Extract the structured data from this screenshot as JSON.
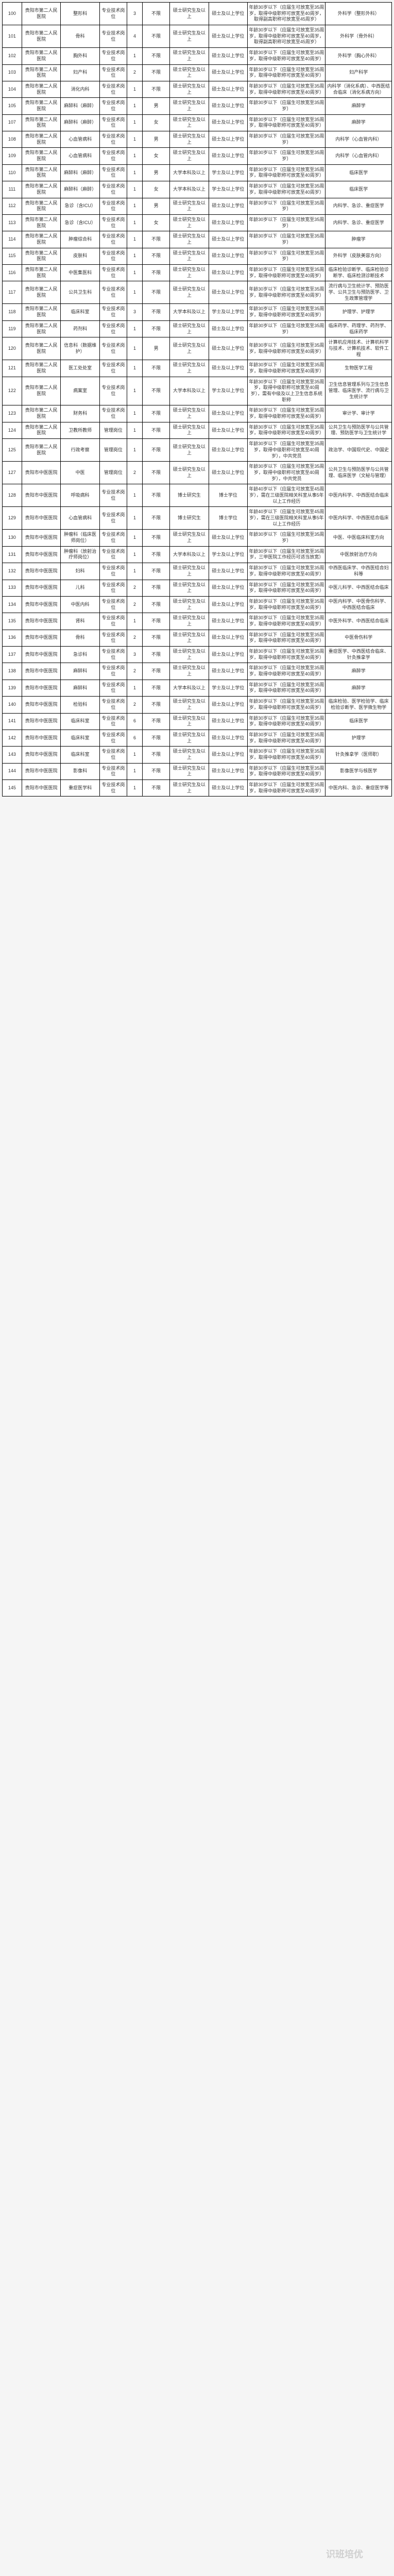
{
  "watermark": "识班培优",
  "columns": [
    {
      "key": "idx",
      "width": "5%"
    },
    {
      "key": "org",
      "width": "10%"
    },
    {
      "key": "dept",
      "width": "10%"
    },
    {
      "key": "jobtype",
      "width": "7%"
    },
    {
      "key": "count",
      "width": "4%"
    },
    {
      "key": "gender",
      "width": "7%"
    },
    {
      "key": "degree1",
      "width": "10%"
    },
    {
      "key": "degree2",
      "width": "10%"
    },
    {
      "key": "age",
      "width": "20%"
    },
    {
      "key": "major",
      "width": "17%"
    }
  ],
  "rows": [
    {
      "idx": "100",
      "org": "贵阳市第二人民医院",
      "dept": "整形科",
      "jobtype": "专业技术岗位",
      "count": "3",
      "gender": "不限",
      "degree1": "硕士研究生及以上",
      "degree2": "硕士及以上学位",
      "age": "年龄30岁以下（应届生可放宽至35周岁，取得中级职称可放宽至40周岁，取得副高职称可放宽至45周岁）",
      "major": "外科学（整形外科）"
    },
    {
      "idx": "101",
      "org": "贵阳市第二人民医院",
      "dept": "骨科",
      "jobtype": "专业技术岗位",
      "count": "4",
      "gender": "不限",
      "degree1": "硕士研究生及以上",
      "degree2": "硕士及以上学位",
      "age": "年龄30岁以下（应届生可放宽至35周岁，取得中级职称可放宽至40周岁，取得副高职称可放宽至45周岁）",
      "major": "外科学（骨外科）"
    },
    {
      "idx": "102",
      "org": "贵阳市第二人民医院",
      "dept": "胸外科",
      "jobtype": "专业技术岗位",
      "count": "1",
      "gender": "不限",
      "degree1": "硕士研究生及以上",
      "degree2": "硕士及以上学位",
      "age": "年龄30岁以下（应届生可放宽至35周岁，取得中级职称可放宽至40周岁）",
      "major": "外科学（胸心外科）"
    },
    {
      "idx": "103",
      "org": "贵阳市第二人民医院",
      "dept": "妇产科",
      "jobtype": "专业技术岗位",
      "count": "2",
      "gender": "不限",
      "degree1": "硕士研究生及以上",
      "degree2": "硕士及以上学位",
      "age": "年龄30岁以下（应届生可放宽至35周岁，取得中级职称可放宽至40周岁）",
      "major": "妇产科学"
    },
    {
      "idx": "104",
      "org": "贵阳市第二人民医院",
      "dept": "消化内科",
      "jobtype": "专业技术岗位",
      "count": "1",
      "gender": "不限",
      "degree1": "硕士研究生及以上",
      "degree2": "硕士及以上学位",
      "age": "年龄30岁以下（应届生可放宽至35周岁，取得中级职称可放宽至40周岁）",
      "major": "内科学（消化系病）、中西医结合临床（消化系病方向）"
    },
    {
      "idx": "105",
      "org": "贵阳市第二人民医院",
      "dept": "麻醉科（麻醉）",
      "jobtype": "专业技术岗位",
      "count": "1",
      "gender": "男",
      "degree1": "硕士研究生及以上",
      "degree2": "硕士及以上学位",
      "age": "年龄30岁以下（应届生可放宽至35周岁）",
      "major": "麻醉学"
    },
    {
      "idx": "107",
      "org": "贵阳市第二人民医院",
      "dept": "麻醉科（麻醉）",
      "jobtype": "专业技术岗位",
      "count": "1",
      "gender": "女",
      "degree1": "硕士研究生及以上",
      "degree2": "硕士及以上学位",
      "age": "年龄30岁以下（应届生可放宽至35周岁，取得中级职称可放宽至40周岁）",
      "major": "麻醉学"
    },
    {
      "idx": "108",
      "org": "贵阳市第二人民医院",
      "dept": "心血管病科",
      "jobtype": "专业技术岗位",
      "count": "1",
      "gender": "男",
      "degree1": "硕士研究生及以上",
      "degree2": "硕士及以上学位",
      "age": "年龄30岁以下（应届生可放宽至35周岁）",
      "major": "内科学（心血管内科）"
    },
    {
      "idx": "109",
      "org": "贵阳市第二人民医院",
      "dept": "心血管病科",
      "jobtype": "专业技术岗位",
      "count": "1",
      "gender": "女",
      "degree1": "硕士研究生及以上",
      "degree2": "硕士及以上学位",
      "age": "年龄30岁以下（应届生可放宽至35周岁）",
      "major": "内科学（心血管内科）"
    },
    {
      "idx": "110",
      "org": "贵阳市第二人民医院",
      "dept": "麻醉科（麻醉）",
      "jobtype": "专业技术岗位",
      "count": "1",
      "gender": "男",
      "degree1": "大学本科及以上",
      "degree2": "学士及以上学位",
      "age": "年龄30岁以下（应届生可放宽至35周岁，取得中级职称可放宽至40周岁）",
      "major": "临床医学"
    },
    {
      "idx": "111",
      "org": "贵阳市第二人民医院",
      "dept": "麻醉科（麻醉）",
      "jobtype": "专业技术岗位",
      "count": "1",
      "gender": "女",
      "degree1": "大学本科及以上",
      "degree2": "学士及以上学位",
      "age": "年龄30岁以下（应届生可放宽至35周岁，取得中级职称可放宽至40周岁）",
      "major": "临床医学"
    },
    {
      "idx": "112",
      "org": "贵阳市第二人民医院",
      "dept": "急诊（含ICU）",
      "jobtype": "专业技术岗位",
      "count": "1",
      "gender": "男",
      "degree1": "硕士研究生及以上",
      "degree2": "硕士及以上学位",
      "age": "年龄30岁以下（应届生可放宽至35周岁）",
      "major": "内科学、急诊、重症医学"
    },
    {
      "idx": "113",
      "org": "贵阳市第二人民医院",
      "dept": "急诊（含ICU）",
      "jobtype": "专业技术岗位",
      "count": "1",
      "gender": "女",
      "degree1": "硕士研究生及以上",
      "degree2": "硕士及以上学位",
      "age": "年龄30岁以下（应届生可放宽至35周岁）",
      "major": "内科学、急诊、重症医学"
    },
    {
      "idx": "114",
      "org": "贵阳市第二人民医院",
      "dept": "肿瘤综合科",
      "jobtype": "专业技术岗位",
      "count": "1",
      "gender": "不限",
      "degree1": "硕士研究生及以上",
      "degree2": "硕士及以上学位",
      "age": "年龄30岁以下（应届生可放宽至35周岁）",
      "major": "肿瘤学"
    },
    {
      "idx": "115",
      "org": "贵阳市第二人民医院",
      "dept": "皮肤科",
      "jobtype": "专业技术岗位",
      "count": "1",
      "gender": "不限",
      "degree1": "硕士研究生及以上",
      "degree2": "硕士及以上学位",
      "age": "年龄30岁以下（应届生可放宽至35周岁）",
      "major": "外科学（皮肤美容方向）"
    },
    {
      "idx": "116",
      "org": "贵阳市第二人民医院",
      "dept": "中医集医科",
      "jobtype": "专业技术岗位",
      "count": "1",
      "gender": "不限",
      "degree1": "硕士研究生及以上",
      "degree2": "硕士及以上学位",
      "age": "年龄30岁以下（应届生可放宽至35周岁，取得中级职称可放宽至40周岁）",
      "major": "临床检验诊断学、临床检验诊断学、临床检测诊断技术"
    },
    {
      "idx": "117",
      "org": "贵阳市第二人民医院",
      "dept": "公共卫生科",
      "jobtype": "专业技术岗位",
      "count": "1",
      "gender": "不限",
      "degree1": "硕士研究生及以上",
      "degree2": "硕士及以上学位",
      "age": "年龄30岁以下（应届生可放宽至35周岁，取得中级职称可放宽至40周岁）",
      "major": "流行病与卫生统计学、预防医学、公共卫生与预防医学、卫生政策管理学"
    },
    {
      "idx": "118",
      "org": "贵阳市第二人民医院",
      "dept": "临床科室",
      "jobtype": "专业技术岗位",
      "count": "3",
      "gender": "不限",
      "degree1": "大学本科及以上",
      "degree2": "学士及以上学位",
      "age": "年龄30岁以下（应届生可放宽至35周岁，取得中级职称可放宽至40周岁）",
      "major": "护理学、护理学"
    },
    {
      "idx": "119",
      "org": "贵阳市第二人民医院",
      "dept": "药剂科",
      "jobtype": "专业技术岗位",
      "count": "1",
      "gender": "不限",
      "degree1": "硕士研究生及以上",
      "degree2": "硕士及以上学位",
      "age": "年龄30岁以下（应届生可放宽至35周岁）",
      "major": "临床药学、药理学、药剂学、临床药学"
    },
    {
      "idx": "120",
      "org": "贵阳市第二人民医院",
      "dept": "信息科（数据维护）",
      "jobtype": "专业技术岗位",
      "count": "1",
      "gender": "男",
      "degree1": "硕士研究生及以上",
      "degree2": "硕士及以上学位",
      "age": "年龄30岁以下（应届生可放宽至35周岁，取得中级职称可放宽至40周岁）",
      "major": "计算机应用技术、计算机科学与技术、计算机技术、软件工程"
    },
    {
      "idx": "121",
      "org": "贵阳市第二人民医院",
      "dept": "医工处处室",
      "jobtype": "专业技术岗位",
      "count": "1",
      "gender": "不限",
      "degree1": "硕士研究生及以上",
      "degree2": "硕士及以上学位",
      "age": "年龄30岁以下（应届生可放宽至35周岁，取得中级职称可放宽至40周岁）",
      "major": "生物医学工程"
    },
    {
      "idx": "122",
      "org": "贵阳市第二人民医院",
      "dept": "病案室",
      "jobtype": "专业技术岗位",
      "count": "1",
      "gender": "不限",
      "degree1": "大学本科及以上",
      "degree2": "学士及以上学位",
      "age": "年龄30岁以下（应届生可放宽至35周岁，取得中级职称可放宽至40周岁），需有中级及以上卫生信息系统职称",
      "major": "卫生信息管理系列与卫生信息管理、临床医学、流行病与卫生统计学"
    },
    {
      "idx": "123",
      "org": "贵阳市第二人民医院",
      "dept": "财务科",
      "jobtype": "专业技术岗位",
      "count": "1",
      "gender": "不限",
      "degree1": "硕士研究生及以上",
      "degree2": "硕士及以上学位",
      "age": "年龄30岁以下（应届生可放宽至35周岁，取得中级职称可放宽至40周岁）",
      "major": "审计学、审计学"
    },
    {
      "idx": "124",
      "org": "贵阳市第二人民医院",
      "dept": "卫教所教师",
      "jobtype": "管理岗位",
      "count": "1",
      "gender": "不限",
      "degree1": "硕士研究生及以上",
      "degree2": "硕士及以上学位",
      "age": "年龄30岁以下（应届生可放宽至35周岁，取得中级职称可放宽至40周岁）",
      "major": "公共卫生与预防医学与公共管理、预防医学与卫生统计学"
    },
    {
      "idx": "125",
      "org": "贵阳市第二人民医院",
      "dept": "行政考察",
      "jobtype": "管理岗位",
      "count": "1",
      "gender": "不限",
      "degree1": "硕士研究生及以上",
      "degree2": "硕士及以上学位",
      "age": "年龄30岁以下（应届生可放宽至35周岁，取得中级职称可放宽至40周岁），中共党员",
      "major": "政治学、中国现代史、中国史"
    },
    {
      "idx": "127",
      "org": "贵阳市中医医院",
      "dept": "中医",
      "jobtype": "管理岗位",
      "count": "2",
      "gender": "不限",
      "degree1": "硕士研究生及以上",
      "degree2": "硕士及以上学位",
      "age": "年龄30岁以下（应届生可放宽至35周岁，取得中级职称可放宽至40周岁），中共党员",
      "major": "公共卫生与预防医学与公共管理、临床医学（文秘与管理）"
    },
    {
      "idx": "128",
      "org": "贵阳市中医医院",
      "dept": "呼吸病科",
      "jobtype": "专业技术岗位",
      "count": "1",
      "gender": "不限",
      "degree1": "博士研究生",
      "degree2": "博士学位",
      "age": "年龄40岁以下（应届生可放宽至45周岁），需在三级医院相关科室从事5年以上工作经历",
      "major": "中医内科学、中西医结合临床"
    },
    {
      "idx": "129",
      "org": "贵阳市中医医院",
      "dept": "心血管病科",
      "jobtype": "专业技术岗位",
      "count": "1",
      "gender": "不限",
      "degree1": "博士研究生",
      "degree2": "博士学位",
      "age": "年龄40岁以下（应届生可放宽至45周岁），需在三级医院相关科室从事5年以上工作经历",
      "major": "中医内科学、中西医结合临床"
    },
    {
      "idx": "130",
      "org": "贵阳市中医医院",
      "dept": "肿瘤科（临床医师岗位）",
      "jobtype": "专业技术岗位",
      "count": "1",
      "gender": "不限",
      "degree1": "硕士研究生及以上",
      "degree2": "硕士及以上学位",
      "age": "年龄30岁以下（应届生可放宽至35周岁）",
      "major": "中医、中医临床科室方向"
    },
    {
      "idx": "131",
      "org": "贵阳市中医医院",
      "dept": "肿瘤科（放射治疗师岗位）",
      "jobtype": "专业技术岗位",
      "count": "1",
      "gender": "不限",
      "degree1": "大学本科及以上",
      "degree2": "学士及以上学位",
      "age": "年龄30岁以下（应届生可放宽至35周岁，三甲医院工作经历可适当放宽）",
      "major": "中医放射治疗方向"
    },
    {
      "idx": "132",
      "org": "贵阳市中医医院",
      "dept": "妇科",
      "jobtype": "专业技术岗位",
      "count": "1",
      "gender": "不限",
      "degree1": "硕士研究生及以上",
      "degree2": "硕士及以上学位",
      "age": "年龄30岁以下（应届生可放宽至35周岁，取得中级职称可放宽至40周岁）",
      "major": "中西医临床学、中西医结合妇科等"
    },
    {
      "idx": "133",
      "org": "贵阳市中医医院",
      "dept": "儿科",
      "jobtype": "专业技术岗位",
      "count": "2",
      "gender": "不限",
      "degree1": "硕士研究生及以上",
      "degree2": "硕士及以上学位",
      "age": "年龄30岁以下（应届生可放宽至35周岁，取得中级职称可放宽至40周岁）",
      "major": "中医儿科学、中西医结合临床"
    },
    {
      "idx": "134",
      "org": "贵阳市中医医院",
      "dept": "中医内科",
      "jobtype": "专业技术岗位",
      "count": "2",
      "gender": "不限",
      "degree1": "硕士研究生及以上",
      "degree2": "硕士及以上学位",
      "age": "年龄30岁以下（应届生可放宽至35周岁，取得中级职称可放宽至40周岁）",
      "major": "中医内科学、中医骨伤科学、中西医结合临床"
    },
    {
      "idx": "135",
      "org": "贵阳市中医医院",
      "dept": "肾科",
      "jobtype": "专业技术岗位",
      "count": "1",
      "gender": "不限",
      "degree1": "硕士研究生及以上",
      "degree2": "硕士及以上学位",
      "age": "年龄30岁以下（应届生可放宽至35周岁，取得中级职称可放宽至40周岁）",
      "major": "中医外科学、中西医结合临床"
    },
    {
      "idx": "136",
      "org": "贵阳市中医医院",
      "dept": "骨科",
      "jobtype": "专业技术岗位",
      "count": "2",
      "gender": "不限",
      "degree1": "硕士研究生及以上",
      "degree2": "硕士及以上学位",
      "age": "年龄30岁以下（应届生可放宽至35周岁，取得中级职称可放宽至40周岁）",
      "major": "中医骨伤科学"
    },
    {
      "idx": "137",
      "org": "贵阳市中医医院",
      "dept": "急诊科",
      "jobtype": "专业技术岗位",
      "count": "3",
      "gender": "不限",
      "degree1": "硕士研究生及以上",
      "degree2": "硕士及以上学位",
      "age": "年龄30岁以下（应届生可放宽至35周岁，取得中级职称可放宽至40周岁）",
      "major": "重症医学、中西医结合临床、针灸推拿学"
    },
    {
      "idx": "138",
      "org": "贵阳市中医医院",
      "dept": "麻醉科",
      "jobtype": "专业技术岗位",
      "count": "2",
      "gender": "不限",
      "degree1": "硕士研究生及以上",
      "degree2": "硕士及以上学位",
      "age": "年龄30岁以下（应届生可放宽至35周岁，取得中级职称可放宽至40周岁）",
      "major": "麻醉学"
    },
    {
      "idx": "139",
      "org": "贵阳市中医医院",
      "dept": "麻醉科",
      "jobtype": "专业技术岗位",
      "count": "1",
      "gender": "不限",
      "degree1": "大学本科及以上",
      "degree2": "学士及以上学位",
      "age": "年龄30岁以下（应届生可放宽至35周岁，取得中级职称可放宽至40周岁）",
      "major": "麻醉学"
    },
    {
      "idx": "140",
      "org": "贵阳市中医医院",
      "dept": "检验科",
      "jobtype": "专业技术岗位",
      "count": "2",
      "gender": "不限",
      "degree1": "硕士研究生及以上",
      "degree2": "硕士及以上学位",
      "age": "年龄30岁以下（应届生可放宽至35周岁，取得中级职称可放宽至40周岁）",
      "major": "临床检验、医学检验学、临床检验诊断学、医学微生物学"
    },
    {
      "idx": "141",
      "org": "贵阳市中医医院",
      "dept": "临床科室",
      "jobtype": "专业技术岗位",
      "count": "6",
      "gender": "不限",
      "degree1": "硕士研究生及以上",
      "degree2": "硕士及以上学位",
      "age": "年龄30岁以下（应届生可放宽至35周岁，取得中级职称可放宽至40周岁）",
      "major": "临床医学"
    },
    {
      "idx": "142",
      "org": "贵阳市中医医院",
      "dept": "临床科室",
      "jobtype": "专业技术岗位",
      "count": "6",
      "gender": "不限",
      "degree1": "硕士研究生及以上",
      "degree2": "硕士及以上学位",
      "age": "年龄30岁以下（应届生可放宽至35周岁，取得中级职称可放宽至40周岁）",
      "major": "护理学"
    },
    {
      "idx": "143",
      "org": "贵阳市中医医院",
      "dept": "临床科室",
      "jobtype": "专业技术岗位",
      "count": "1",
      "gender": "不限",
      "degree1": "硕士研究生及以上",
      "degree2": "硕士及以上学位",
      "age": "年龄30岁以下（应届生可放宽至35周岁，取得中级职称可放宽至40周岁）",
      "major": "针灸推拿学（医师职）"
    },
    {
      "idx": "144",
      "org": "贵阳市中医医院",
      "dept": "影像科",
      "jobtype": "专业技术岗位",
      "count": "1",
      "gender": "不限",
      "degree1": "硕士研究生及以上",
      "degree2": "硕士及以上学位",
      "age": "年龄30岁以下（应届生可放宽至35周岁，取得中级职称可放宽至40周岁）",
      "major": "影像医学与核医学"
    },
    {
      "idx": "145",
      "org": "贵阳市中医医院",
      "dept": "重症医学科",
      "jobtype": "专业技术岗位",
      "count": "1",
      "gender": "不限",
      "degree1": "硕士研究生及以上",
      "degree2": "硕士及以上学位",
      "age": "年龄30岁以下（应届生可放宽至35周岁，取得中级职称可放宽至40周岁）",
      "major": "中医内科、急诊、重症医学等"
    }
  ]
}
